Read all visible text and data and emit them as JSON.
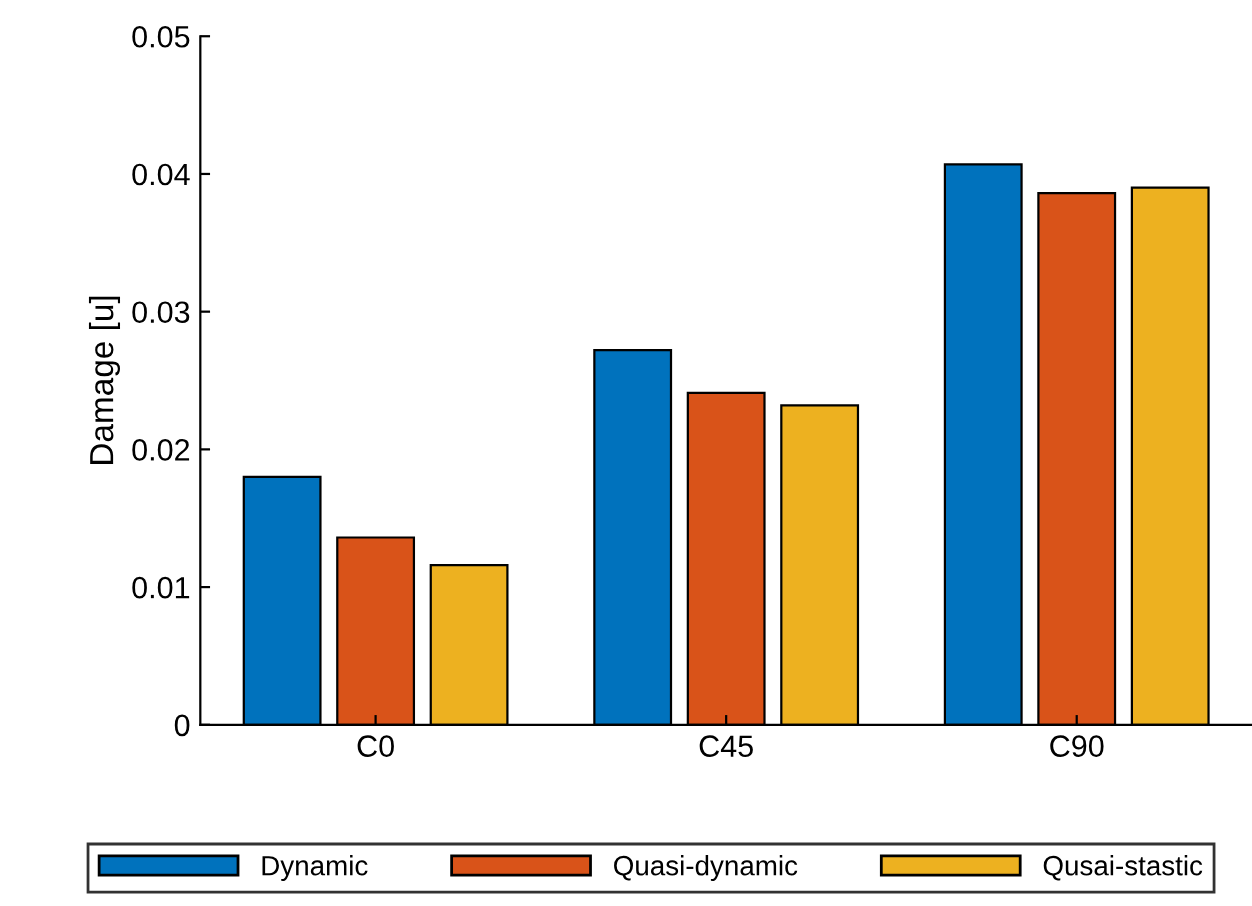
{
  "chart_data": {
    "type": "bar",
    "ylabel": "Damage [u]",
    "categories": [
      "C0",
      "C45",
      "C90"
    ],
    "series": [
      {
        "name": "Dynamic",
        "color": "#0072bd",
        "values": [
          0.018,
          0.0272,
          0.0407
        ]
      },
      {
        "name": "Quasi-dynamic",
        "color": "#d95319",
        "values": [
          0.0136,
          0.0241,
          0.0386
        ]
      },
      {
        "name": "Qusai-stastic",
        "color": "#edb120",
        "values": [
          0.0116,
          0.0232,
          0.039
        ]
      }
    ],
    "ylim": [
      0,
      0.05
    ],
    "yticks": [
      {
        "value": 0,
        "label": "0"
      },
      0.01,
      0.02,
      0.03,
      0.04,
      0.05
    ],
    "grid": false,
    "legend": "bottom"
  }
}
